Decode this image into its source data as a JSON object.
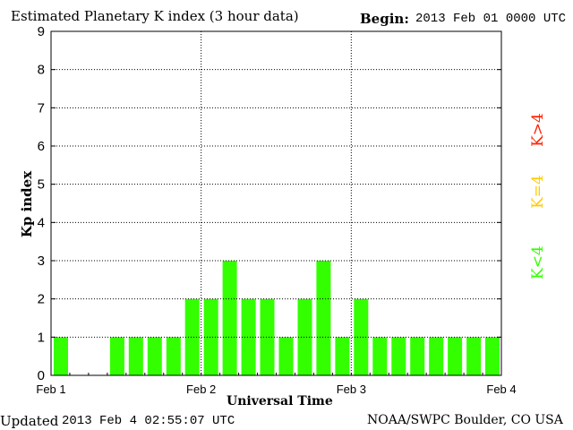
{
  "header": {
    "title": "Estimated Planetary K index (3 hour data)",
    "begin_label": "Begin:",
    "begin_value": "2013 Feb 01 0000 UTC"
  },
  "footer": {
    "updated_label": "Updated",
    "updated_value": "2013 Feb  4 02:55:07 UTC",
    "source": "NOAA/SWPC Boulder, CO USA"
  },
  "legend": [
    {
      "label": "K<4",
      "color": "#33ff00"
    },
    {
      "label": "K=4",
      "color": "#ffcc00"
    },
    {
      "label": "K>4",
      "color": "#ff2200"
    }
  ],
  "chart_data": {
    "type": "bar",
    "title": "Estimated Planetary K index (3 hour data)",
    "xlabel": "Universal Time",
    "ylabel": "Kp index",
    "ylim": [
      0,
      9
    ],
    "yticks": [
      "0",
      "1",
      "2",
      "3",
      "4",
      "5",
      "6",
      "7",
      "8",
      "9"
    ],
    "xticks": [
      "Feb 1",
      "Feb 2",
      "Feb 3",
      "Feb 4"
    ],
    "bars_per_day": 8,
    "grid": true,
    "bar_color": "#33ff00",
    "values": [
      1,
      null,
      null,
      1,
      1,
      1,
      1,
      2,
      2,
      3,
      2,
      2,
      1,
      2,
      3,
      1,
      2,
      1,
      1,
      1,
      1,
      1,
      1,
      1
    ]
  }
}
